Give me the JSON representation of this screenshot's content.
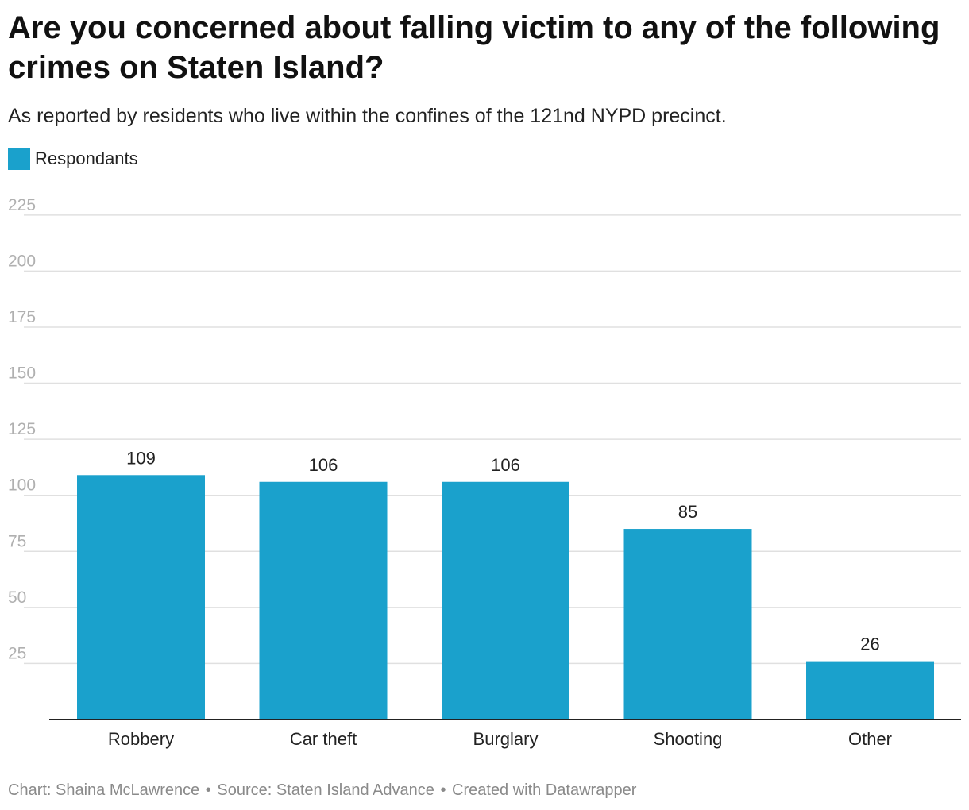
{
  "header": {
    "title": "Are you concerned about falling victim to any of the following crimes on Staten Island?",
    "subtitle": "As reported by residents who live within the confines of the 121nd NYPD precinct."
  },
  "legend": {
    "label": "Respondants",
    "color": "#1aa1cc"
  },
  "footer": {
    "chart_credit": "Chart: Shaina McLawrence",
    "source": "Source: Staten Island Advance",
    "tool": "Created with Datawrapper",
    "separator": "•"
  },
  "colors": {
    "bar": "#1aa1cc",
    "grid": "#e0e0e0",
    "axis": "#222222",
    "tick_label": "#b0b0b0"
  },
  "chart_data": {
    "type": "bar",
    "title": "Are you concerned about falling victim to any of the following crimes on Staten Island?",
    "categories": [
      "Robbery",
      "Car theft",
      "Burglary",
      "Shooting",
      "Other"
    ],
    "series": [
      {
        "name": "Respondants",
        "values": [
          109,
          106,
          106,
          85,
          26
        ]
      }
    ],
    "xlabel": "",
    "ylabel": "",
    "ylim": [
      0,
      225
    ],
    "yticks": [
      25,
      50,
      75,
      100,
      125,
      150,
      175,
      200,
      225
    ],
    "grid": true,
    "data_labels": true,
    "legend_position": "top-left"
  }
}
